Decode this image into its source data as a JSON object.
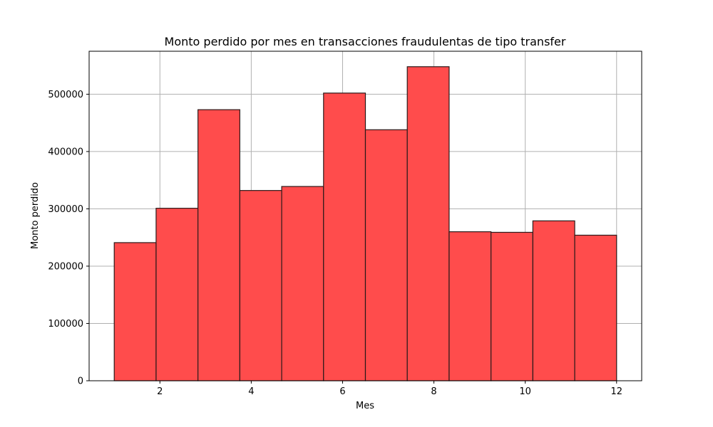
{
  "chart_data": {
    "type": "bar",
    "title": "Monto perdido por mes en transacciones fraudulentas de tipo transfer",
    "xlabel": "Mes",
    "ylabel": "Monto perdido",
    "bin_edges": [
      1,
      1.9167,
      2.8333,
      3.75,
      4.6667,
      5.5833,
      6.5,
      7.4167,
      8.3333,
      9.25,
      10.1667,
      11.0833,
      12
    ],
    "values": [
      241000,
      301000,
      473000,
      332000,
      339000,
      502000,
      438000,
      548000,
      260000,
      259000,
      279000,
      254000
    ],
    "xlim": [
      0.45,
      12.55
    ],
    "ylim": [
      0,
      575000
    ],
    "xticks": [
      2,
      4,
      6,
      8,
      10,
      12
    ],
    "yticks": [
      0,
      100000,
      200000,
      300000,
      400000,
      500000
    ],
    "xtick_labels": [
      "2",
      "4",
      "6",
      "8",
      "10",
      "12"
    ],
    "ytick_labels": [
      "0",
      "100000",
      "200000",
      "300000",
      "400000",
      "500000"
    ],
    "grid": true,
    "bar_color": "#ff4c4c",
    "edge_color": "#2b1a1a"
  }
}
